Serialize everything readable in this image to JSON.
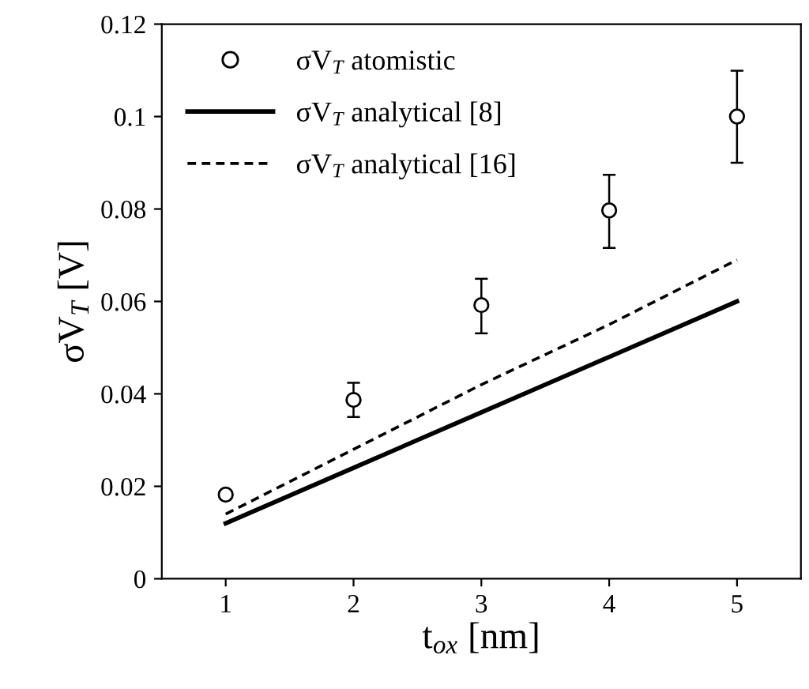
{
  "chart_data": {
    "type": "scatter",
    "xlabel": "t$_{ox}$ [nm]",
    "ylabel": "σV$_{T}$ [V]",
    "x": [
      1,
      2,
      3,
      4,
      5
    ],
    "series": [
      {
        "name": "σV$_{T}$ atomistic",
        "color": "#000000",
        "marker": "circle",
        "values": [
          0.0182,
          0.0387,
          0.0592,
          0.0797,
          0.1
        ],
        "errors": [
          null,
          [
            0.035,
            0.0424
          ],
          [
            0.0531,
            0.0649
          ],
          [
            0.0716,
            0.0874
          ],
          [
            0.09,
            0.1099
          ]
        ]
      },
      {
        "name": "σV$_{T}$ analytical [8]",
        "type": "line",
        "color": "#000000",
        "line_style": "solid",
        "values": [
          0.012,
          0.024,
          0.036,
          0.048,
          0.06
        ]
      },
      {
        "name": "σV$_{T}$ analytical [16]",
        "type": "line",
        "color": "#000000",
        "line_style": "dashed",
        "values": [
          0.014,
          0.028,
          0.042,
          0.055,
          0.069
        ]
      }
    ],
    "xlim": [
      0.5,
      5.5
    ],
    "xticks": [
      1,
      2,
      3,
      4,
      5
    ],
    "ylim": [
      0,
      0.12
    ],
    "yticks": [
      0,
      0.02,
      0.04,
      0.06,
      0.08,
      0.1,
      0.12
    ],
    "grid": false,
    "legend": "top left"
  }
}
